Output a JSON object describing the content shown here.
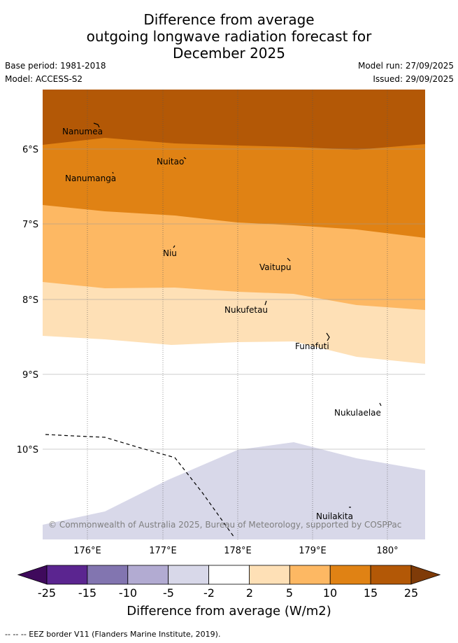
{
  "title": {
    "line1": "Difference from average",
    "line2": "outgoing longwave radiation forecast for",
    "line3": "December 2025"
  },
  "meta": {
    "base_period": "Base period: 1981-2018",
    "model": "Model: ACCESS-S2",
    "model_run": "Model run: 27/09/2025",
    "issued": "Issued: 29/09/2025"
  },
  "map": {
    "x_ticks": [
      "176°E",
      "177°E",
      "178°E",
      "179°E",
      "180°"
    ],
    "y_ticks": [
      "6°S",
      "7°S",
      "8°S",
      "9°S",
      "10°S"
    ],
    "places": [
      "Nanumea",
      "Nuitao",
      "Nanumanga",
      "Niu",
      "Vaitupu",
      "Nukufetau",
      "Funafuti",
      "Nukulaelae",
      "Nuilakita"
    ],
    "copyright": "© Commonwealth of Australia 2025, Bureau of Meteorology, supported by COSPPac"
  },
  "colorbar": {
    "labels": [
      "-25",
      "-15",
      "-10",
      "-5",
      "-2",
      "2",
      "5",
      "10",
      "15",
      "25"
    ],
    "colors": [
      "#3f0a5c",
      "#5b2590",
      "#8275b0",
      "#b2abd2",
      "#d8d8e9",
      "#ffffff",
      "#fee0b6",
      "#fdb863",
      "#e08214",
      "#b35806",
      "#7f3b08"
    ],
    "title": "Difference from average (W/m2)"
  },
  "footnote": "--  --  -- EEZ border V11 (Flanders Marine Institute, 2019)."
}
